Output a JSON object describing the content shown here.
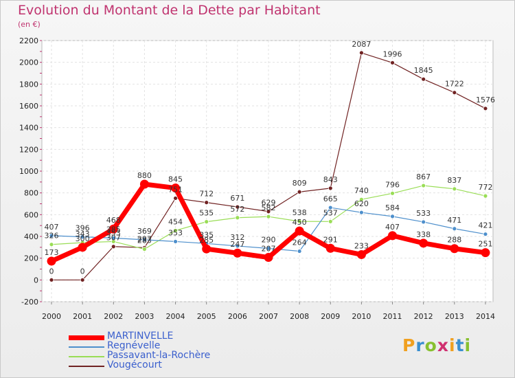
{
  "title": "Evolution du Montant de la Dette par Habitant",
  "subtitle": "(en €)",
  "logo": "Proxiti",
  "chart_data": {
    "type": "line",
    "x": [
      "2000",
      "2001",
      "2002",
      "2003",
      "2004",
      "2005",
      "2006",
      "2007",
      "2008",
      "2009",
      "2010",
      "2011",
      "2012",
      "2013",
      "2014"
    ],
    "ylim": [
      -200,
      2200
    ],
    "yticks": [
      -200,
      0,
      200,
      400,
      600,
      800,
      1000,
      1200,
      1400,
      1600,
      1800,
      2000,
      2200
    ],
    "grid": true,
    "legend_position": "bottom-left",
    "series": [
      {
        "name": "MARTINVELLE",
        "color": "#ff0000",
        "values": [
          173,
          300,
          468,
          880,
          845,
          285,
          247,
          207,
          450,
          291,
          233,
          407,
          338,
          288,
          251
        ]
      },
      {
        "name": "Regnévelle",
        "color": "#4d8fcc",
        "values": [
          407,
          396,
          385,
          369,
          353,
          335,
          312,
          290,
          264,
          665,
          620,
          584,
          533,
          471,
          421
        ]
      },
      {
        "name": "Passavant-la-Rochère",
        "color": "#99dd55",
        "values": [
          326,
          343,
          353,
          283,
          454,
          535,
          572,
          582,
          538,
          537,
          740,
          796,
          867,
          837,
          772
        ]
      },
      {
        "name": "Vougécourt",
        "color": "#702222",
        "values": [
          0,
          0,
          307,
          297,
          751,
          712,
          671,
          629,
          809,
          843,
          2087,
          1996,
          1845,
          1722,
          1576
        ]
      }
    ]
  }
}
